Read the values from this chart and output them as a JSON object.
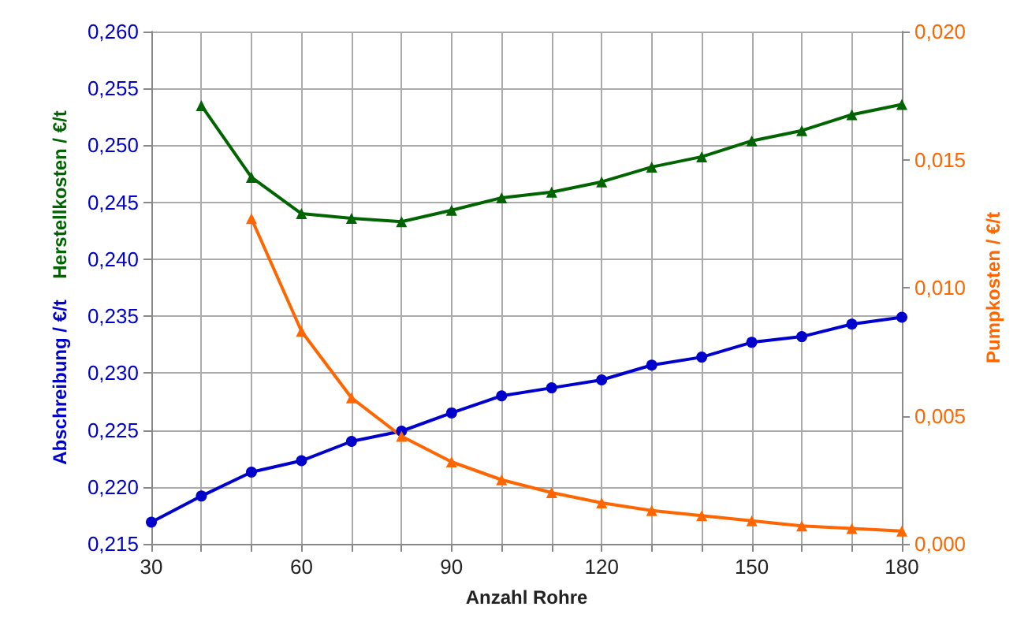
{
  "chart_data": {
    "type": "line",
    "xlabel": "Anzahl Rohre",
    "ylabel": "Abschreibung / €/t",
    "y2label": "Pumpkosten / €/t",
    "annotations": [
      "Herstellkosten / €/t"
    ],
    "x": [
      30,
      40,
      50,
      60,
      70,
      80,
      90,
      100,
      110,
      120,
      130,
      140,
      150,
      160,
      170,
      180
    ],
    "xlim": [
      30,
      180
    ],
    "xticks": [
      30,
      {
        "value": 40,
        "label": null
      },
      {
        "value": 50,
        "label": null
      },
      60,
      {
        "value": 70,
        "label": null
      },
      {
        "value": 80,
        "label": null
      },
      90,
      {
        "value": 100,
        "label": null
      },
      {
        "value": 110,
        "label": null
      },
      120,
      {
        "value": 130,
        "label": null
      },
      {
        "value": 140,
        "label": null
      },
      150,
      {
        "value": 160,
        "label": null
      },
      {
        "value": 170,
        "label": null
      },
      180
    ],
    "ylim": [
      0.215,
      0.26
    ],
    "yticks": [
      {
        "value": 0.215,
        "label": "0,215"
      },
      {
        "value": 0.22,
        "label": "0,220"
      },
      {
        "value": 0.225,
        "label": "0,225"
      },
      {
        "value": 0.23,
        "label": "0,230"
      },
      {
        "value": 0.235,
        "label": "0,235"
      },
      {
        "value": 0.24,
        "label": "0,240"
      },
      {
        "value": 0.245,
        "label": "0,245"
      },
      {
        "value": 0.25,
        "label": "0,250"
      },
      {
        "value": 0.255,
        "label": "0,255"
      },
      {
        "value": 0.26,
        "label": "0,260"
      }
    ],
    "y2lim": [
      0,
      0.02
    ],
    "y2ticks": [
      {
        "value": 0,
        "label": "0,000"
      },
      {
        "value": 0.005,
        "label": "0,005"
      },
      {
        "value": 0.01,
        "label": "0,010"
      },
      {
        "value": 0.015,
        "label": "0,015"
      },
      {
        "value": 0.02,
        "label": "0,020"
      }
    ],
    "grid": true,
    "line_style": "solid",
    "series": [
      {
        "color": "#0000cc",
        "marker": "circle",
        "values": [
          0.2169,
          0.2192,
          0.2213,
          0.2223,
          0.224,
          0.2249,
          0.2265,
          0.228,
          0.2287,
          0.2294,
          0.2307,
          0.2314,
          0.2327,
          0.2332,
          0.2343,
          0.2349
        ]
      },
      {
        "color": "#006400",
        "marker": "triangle",
        "values": [
          null,
          0.2535,
          0.2472,
          0.244,
          0.2436,
          0.2433,
          0.2443,
          0.2454,
          0.2459,
          0.2468,
          0.2481,
          0.249,
          0.2504,
          0.2513,
          0.2527,
          0.2536
        ]
      },
      {
        "color": "#ff6600",
        "marker": "triangle",
        "axis": "y2",
        "values": [
          null,
          null,
          0.0127,
          0.0083,
          0.0057,
          0.0042,
          0.0032,
          0.0025,
          0.002,
          0.0016,
          0.0013,
          0.0011,
          0.0009,
          0.0007,
          0.0006,
          0.0005
        ]
      }
    ]
  }
}
